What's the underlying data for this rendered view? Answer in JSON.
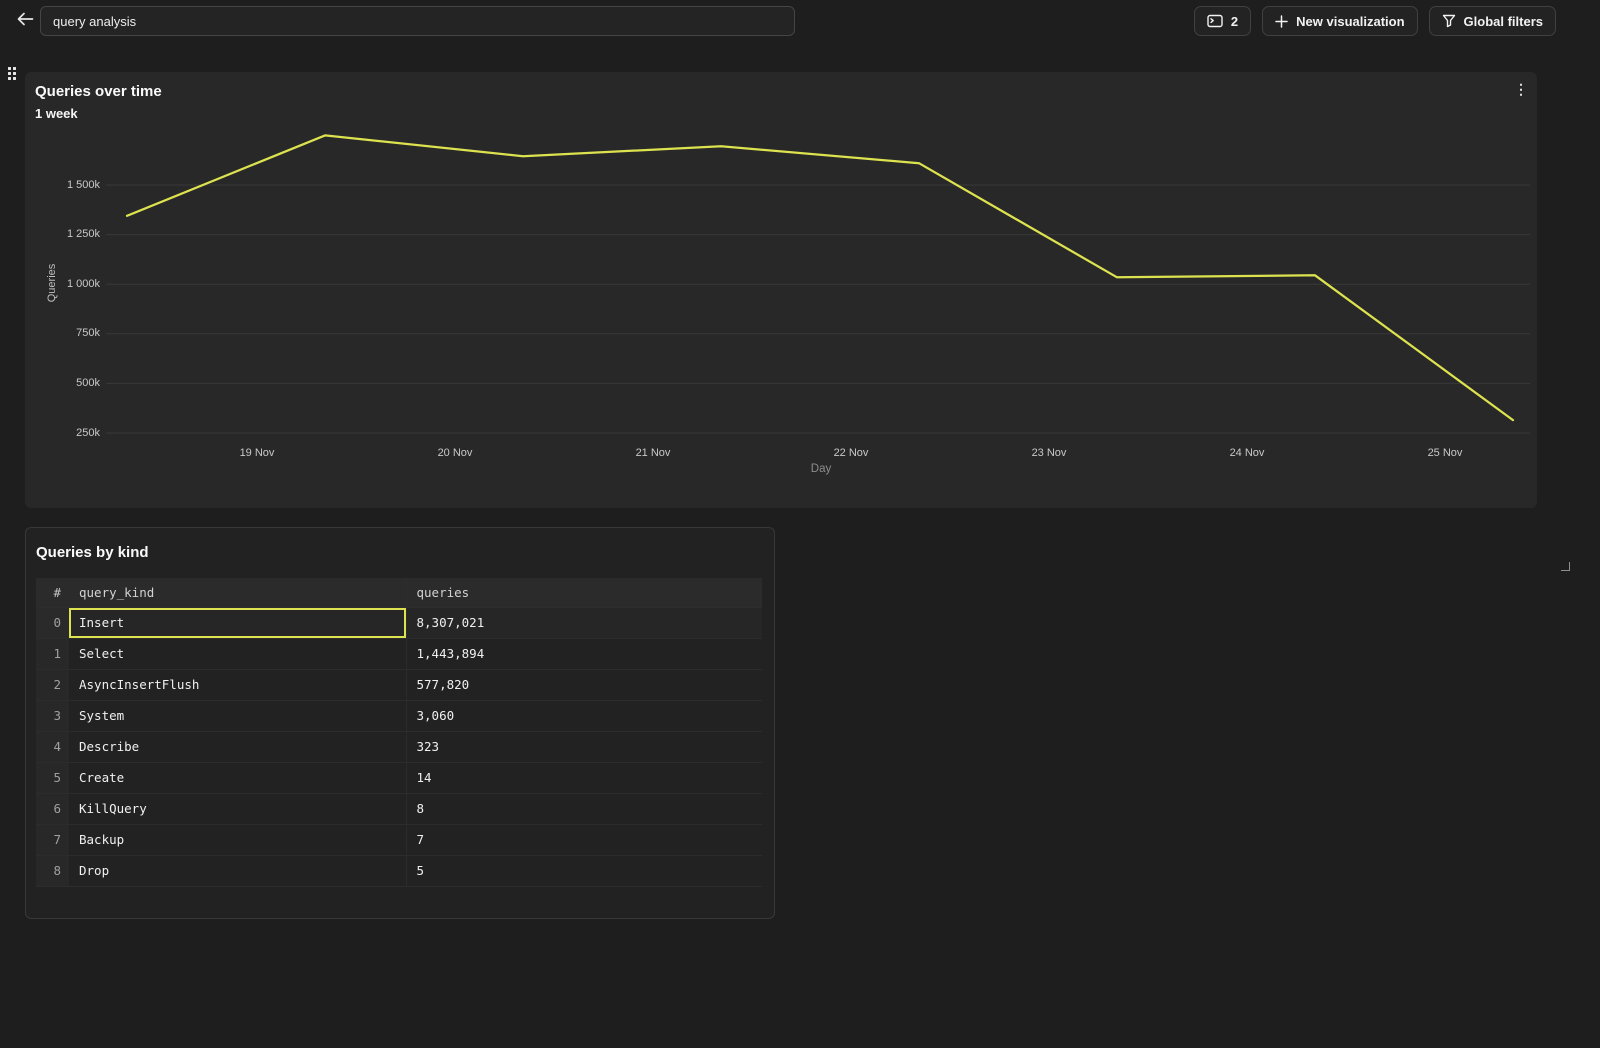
{
  "colors": {
    "accent_yellow": "#dde24f",
    "page_bg": "#1e1e1e",
    "chart_panel_bg": "#282828",
    "table_panel_bg": "#222222",
    "gridline": "rgba(255,255,255,0.08)"
  },
  "topbar": {
    "back_icon": "arrow-left-icon",
    "title_value": "query analysis",
    "console_button": {
      "icon": "console-icon",
      "label": "2"
    },
    "new_visualization_button": {
      "icon": "plus-icon",
      "label": "New visualization"
    },
    "global_filters_button": {
      "icon": "funnel-icon",
      "label": "Global filters"
    }
  },
  "chart_panel": {
    "drag_icon": "grid-drag-icon",
    "menu_icon": "kebab-menu-icon",
    "resize_icon": "resize-corner-icon",
    "title": "Queries over time",
    "subtitle": "1 week"
  },
  "chart_data": {
    "type": "line",
    "title": "Queries over time",
    "subtitle": "1 week",
    "xlabel": "Day",
    "ylabel": "Queries",
    "x_tick_labels": [
      "19 Nov",
      "20 Nov",
      "21 Nov",
      "22 Nov",
      "23 Nov",
      "24 Nov",
      "25 Nov"
    ],
    "y_tick_labels": [
      "250k",
      "500k",
      "750k",
      "1 000k",
      "1 250k",
      "1 500k"
    ],
    "y_tick_values_k": [
      250,
      500,
      750,
      1000,
      1250,
      1500
    ],
    "ylim_k": [
      150,
      1800
    ],
    "grid": "horizontal",
    "legend": false,
    "series": [
      {
        "name": "Queries",
        "color": "#dde24f",
        "values_k": [
          1345,
          1750,
          1645,
          1695,
          1610,
          1035,
          1045,
          315
        ]
      }
    ]
  },
  "table_panel": {
    "title": "Queries by kind",
    "columns": [
      "#",
      "query_kind",
      "queries"
    ],
    "rows": [
      {
        "index": "0",
        "query_kind": "Insert",
        "queries": "8,307,021",
        "selected": true
      },
      {
        "index": "1",
        "query_kind": "Select",
        "queries": "1,443,894",
        "selected": false
      },
      {
        "index": "2",
        "query_kind": "AsyncInsertFlush",
        "queries": "577,820",
        "selected": false
      },
      {
        "index": "3",
        "query_kind": "System",
        "queries": "3,060",
        "selected": false
      },
      {
        "index": "4",
        "query_kind": "Describe",
        "queries": "323",
        "selected": false
      },
      {
        "index": "5",
        "query_kind": "Create",
        "queries": "14",
        "selected": false
      },
      {
        "index": "6",
        "query_kind": "KillQuery",
        "queries": "8",
        "selected": false
      },
      {
        "index": "7",
        "query_kind": "Backup",
        "queries": "7",
        "selected": false
      },
      {
        "index": "8",
        "query_kind": "Drop",
        "queries": "5",
        "selected": false
      }
    ]
  }
}
